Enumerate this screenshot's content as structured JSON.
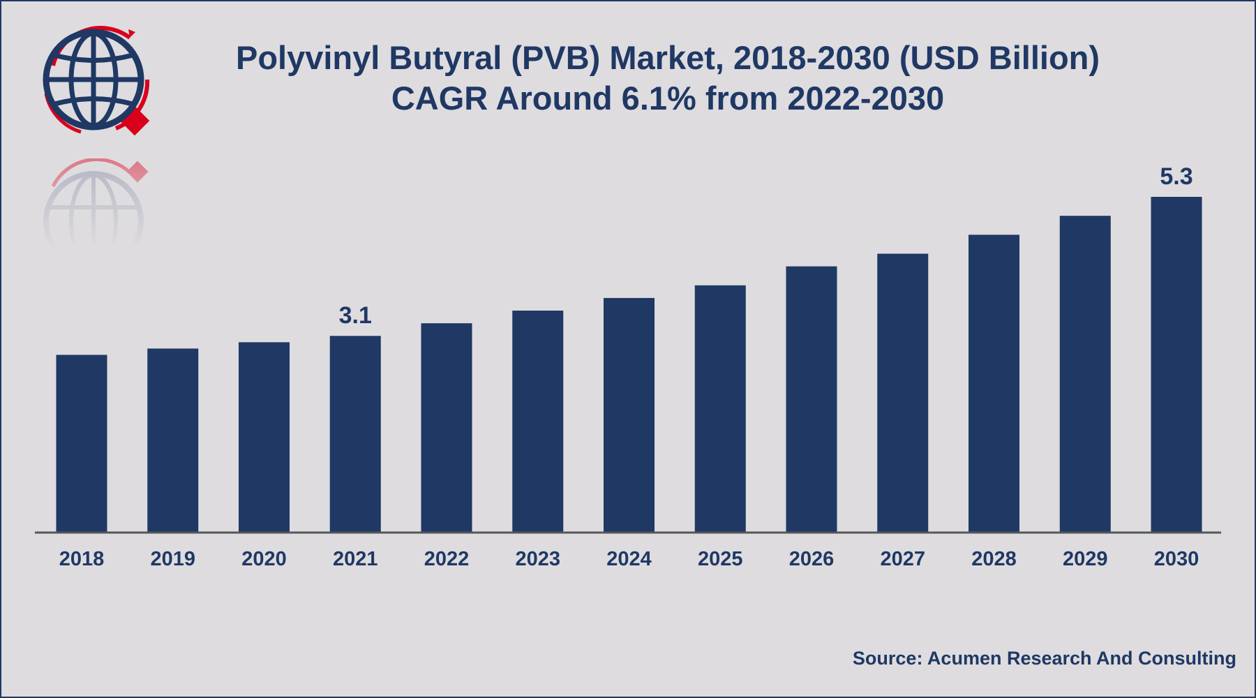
{
  "chart_data": {
    "type": "bar",
    "title": "Polyvinyl Butyral (PVB) Market, 2018-2030 (USD Billion)",
    "subtitle": "CAGR Around 6.1% from 2022-2030",
    "categories": [
      "2018",
      "2019",
      "2020",
      "2021",
      "2022",
      "2023",
      "2024",
      "2025",
      "2026",
      "2027",
      "2028",
      "2029",
      "2030"
    ],
    "values": [
      2.8,
      2.9,
      3.0,
      3.1,
      3.3,
      3.5,
      3.7,
      3.9,
      4.2,
      4.4,
      4.7,
      5.0,
      5.3
    ],
    "data_labels": [
      {
        "index": 3,
        "text": "3.1"
      },
      {
        "index": 12,
        "text": "5.3"
      }
    ],
    "xlabel": "",
    "ylabel": "",
    "ylim": [
      0,
      5.3
    ],
    "grid": false,
    "legend": "none",
    "bar_color": "#1f3864"
  },
  "source": "Source: Acumen Research And Consulting",
  "colors": {
    "background": "#dedcdf",
    "primary": "#1f3864",
    "accent": "#d9001b"
  },
  "logo_icon": "globe-magnifier-icon"
}
